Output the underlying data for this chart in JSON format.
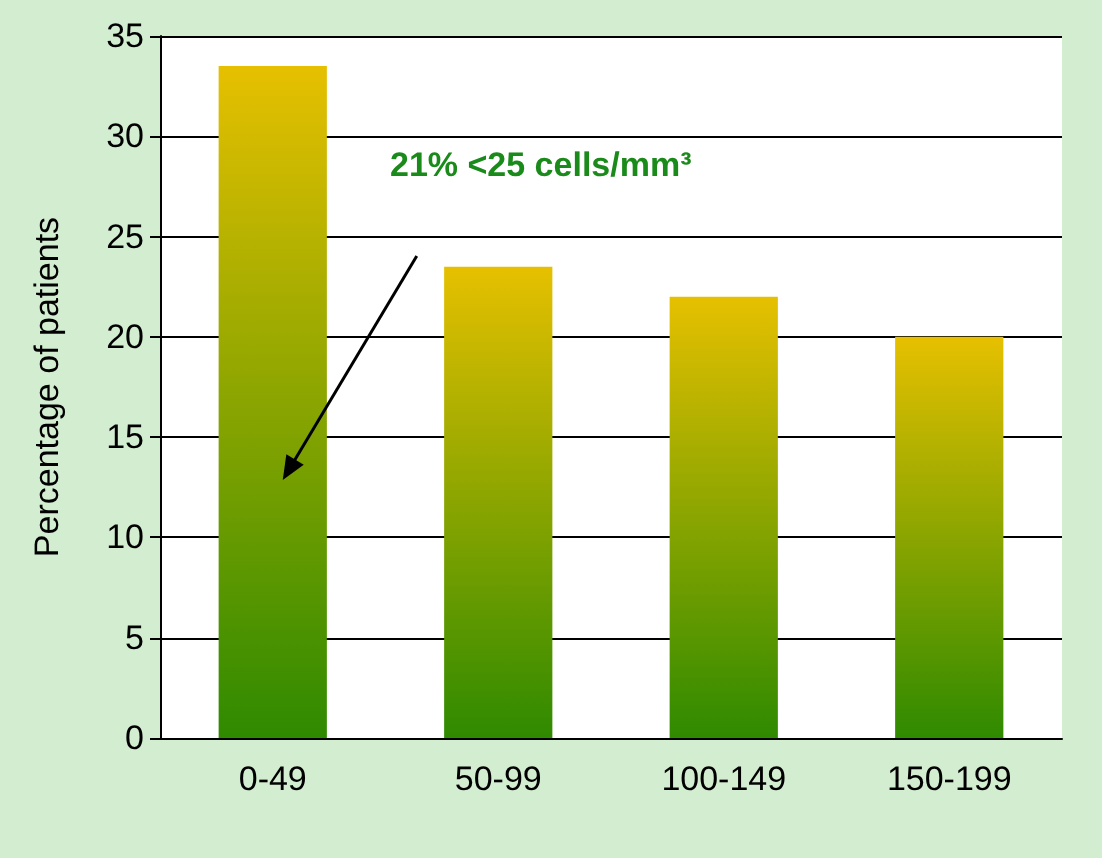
{
  "chart_data": {
    "type": "bar",
    "ylabel": "Percentage of patients",
    "categories": [
      "0-49",
      "50-99",
      "100-149",
      "150-199"
    ],
    "values": [
      33.5,
      23.5,
      22,
      20
    ],
    "color": "#e6c000",
    "ylim": [
      0,
      35
    ],
    "yticks": [
      0,
      5,
      10,
      15,
      20,
      25,
      30,
      35
    ],
    "grid": "y",
    "annotations": [
      "21% <25 cells/mm³"
    ]
  }
}
